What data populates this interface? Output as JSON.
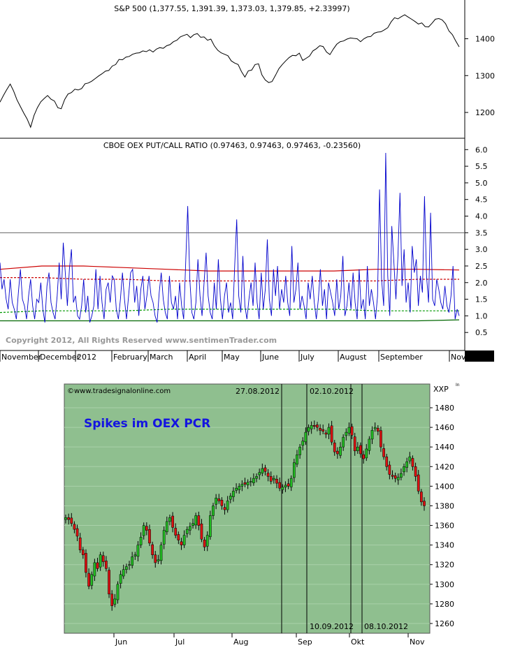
{
  "chart_data": [
    {
      "type": "line",
      "title": "S&P 500 (1,377.55, 1,391.39, 1,373.03, 1,379.85, +2.33997)",
      "y_ticks": [
        "1400",
        "1300",
        "1200"
      ],
      "ylim": [
        1130,
        1490
      ],
      "series": [
        {
          "values": [
            1228,
            1246,
            1262,
            1277,
            1258,
            1234,
            1216,
            1198,
            1182,
            1160,
            1192,
            1213,
            1229,
            1238,
            1246,
            1236,
            1231,
            1213,
            1210,
            1235,
            1250,
            1254,
            1263,
            1261,
            1265,
            1278,
            1280,
            1285,
            1292,
            1299,
            1305,
            1312,
            1314,
            1326,
            1330,
            1344,
            1343,
            1350,
            1352,
            1358,
            1361,
            1362,
            1367,
            1365,
            1370,
            1364,
            1372,
            1376,
            1374,
            1381,
            1384,
            1392,
            1396,
            1405,
            1409,
            1412,
            1403,
            1411,
            1414,
            1404,
            1405,
            1396,
            1399,
            1381,
            1369,
            1362,
            1358,
            1354,
            1340,
            1334,
            1330,
            1311,
            1296,
            1313,
            1315,
            1330,
            1332,
            1302,
            1288,
            1281,
            1284,
            1301,
            1319,
            1330,
            1340,
            1349,
            1355,
            1354,
            1361,
            1341,
            1347,
            1353,
            1367,
            1373,
            1381,
            1379,
            1364,
            1357,
            1372,
            1385,
            1392,
            1394,
            1399,
            1402,
            1401,
            1400,
            1392,
            1400,
            1405,
            1406,
            1415,
            1418,
            1419,
            1424,
            1430,
            1446,
            1457,
            1454,
            1460,
            1465,
            1459,
            1453,
            1447,
            1440,
            1443,
            1433,
            1432,
            1442,
            1453,
            1455,
            1451,
            1441,
            1421,
            1411,
            1394,
            1378
          ],
          "color": "#000000"
        }
      ]
    },
    {
      "type": "line",
      "title": "CBOE OEX PUT/CALL RATIO (0.97463, 0.97463, 0.97463, -0.23560)",
      "y_ticks": [
        "6.0",
        "5.5",
        "5.0",
        "4.5",
        "4.0",
        "3.5",
        "3.0",
        "2.5",
        "2.0",
        "1.5",
        "1.0",
        "0.5"
      ],
      "ylim": [
        0,
        6.3
      ],
      "x_ticks": [
        "November",
        "December",
        "2012",
        "February",
        "March",
        "April",
        "May",
        "June",
        "July",
        "August",
        "September",
        "Nov"
      ],
      "reference_line": 3.5,
      "series": [
        {
          "name": "",
          "color": "#0000cc",
          "values": [
            2.6,
            1.8,
            2.1,
            1.5,
            1.2,
            2.1,
            1.4,
            1.2,
            0.9,
            1.7,
            2.4,
            1.5,
            1.3,
            0.9,
            1.6,
            2.1,
            1.3,
            0.9,
            1.5,
            1.4,
            2.0,
            1.2,
            0.8,
            1.9,
            2.3,
            1.4,
            1.1,
            0.9,
            1.6,
            2.6,
            1.5,
            3.2,
            2.3,
            1.3,
            2.4,
            3.0,
            1.4,
            1.6,
            1.0,
            0.9,
            1.3,
            2.1,
            1.1,
            1.6,
            0.8,
            1.0,
            1.3,
            2.4,
            1.2,
            2.2,
            1.4,
            0.9,
            1.8,
            2.0,
            1.4,
            2.2,
            2.1,
            1.2,
            0.9,
            1.5,
            2.3,
            1.5,
            0.9,
            1.6,
            2.3,
            2.4,
            1.4,
            1.9,
            1.0,
            1.8,
            2.2,
            1.2,
            1.6,
            2.2,
            1.6,
            1.4,
            1.0,
            0.8,
            1.7,
            2.3,
            1.5,
            1.1,
            0.9,
            2.2,
            1.4,
            1.2,
            1.6,
            0.9,
            2.0,
            1.3,
            0.9,
            2.6,
            4.3,
            2.1,
            1.1,
            0.9,
            1.4,
            2.7,
            1.6,
            1.0,
            2.0,
            2.9,
            1.6,
            1.1,
            0.9,
            2.0,
            1.2,
            2.7,
            1.5,
            0.9,
            1.6,
            2.0,
            1.1,
            1.4,
            0.9,
            2.5,
            3.9,
            1.6,
            1.1,
            2.8,
            1.3,
            0.9,
            1.5,
            2.0,
            1.3,
            2.6,
            1.4,
            0.9,
            2.3,
            1.2,
            1.8,
            3.3,
            1.5,
            1.0,
            2.4,
            1.6,
            2.5,
            1.2,
            1.8,
            1.4,
            2.2,
            1.4,
            1.0,
            3.1,
            1.4,
            1.8,
            2.6,
            1.2,
            1.6,
            1.3,
            0.9,
            2.0,
            1.5,
            2.2,
            1.4,
            0.9,
            1.5,
            2.4,
            1.3,
            1.8,
            0.9,
            2.0,
            1.7,
            1.4,
            1.0,
            2.1,
            1.2,
            1.6,
            2.8,
            1.0,
            1.3,
            2.0,
            1.2,
            2.3,
            1.4,
            0.9,
            2.4,
            1.2,
            1.5,
            0.9,
            2.5,
            1.3,
            1.8,
            1.4,
            0.9,
            1.6,
            4.8,
            2.1,
            1.3,
            5.9,
            2.2,
            1.0,
            3.7,
            2.6,
            1.5,
            2.8,
            4.7,
            1.9,
            3.0,
            1.4,
            2.0,
            1.1,
            3.1,
            2.3,
            2.7,
            1.3,
            2.2,
            1.7,
            4.6,
            2.2,
            1.4,
            4.1,
            1.5,
            1.3,
            2.1,
            1.8,
            1.4,
            1.2,
            1.9,
            1.3,
            1.1,
            1.6,
            2.5,
            0.9,
            1.2,
            1.0
          ]
        },
        {
          "name": "",
          "color": "#cc0000",
          "values": [
            2.4,
            2.5,
            2.5,
            2.45,
            2.4,
            2.35,
            2.35,
            2.35,
            2.35,
            2.4,
            2.4,
            2.38
          ]
        },
        {
          "name": "",
          "color": "#cc0000",
          "dashed": true,
          "values": [
            2.15,
            2.15,
            2.1,
            2.1,
            2.05,
            2.05,
            2.05,
            2.05,
            2.05,
            2.05,
            2.1,
            2.1
          ]
        },
        {
          "name": "",
          "color": "#009900",
          "dashed": true,
          "values": [
            1.1,
            1.15,
            1.15,
            1.15,
            1.2,
            1.2,
            1.2,
            1.2,
            1.2,
            1.15,
            1.15,
            1.15
          ]
        },
        {
          "name": "",
          "color": "#006600",
          "values": [
            0.85,
            0.85,
            0.85,
            0.85,
            0.85,
            0.85,
            0.85,
            0.85,
            0.85,
            0.85,
            0.85,
            0.88
          ]
        }
      ]
    },
    {
      "type": "candlestick",
      "title": "Spikes im OEX PCR",
      "y_ticks": [
        "1480",
        "1460",
        "1440",
        "1420",
        "1400",
        "1380",
        "1360",
        "1340",
        "1320",
        "1300",
        "1280",
        "1260"
      ],
      "ylim": [
        1249,
        1501
      ],
      "x_ticks": [
        "Jun",
        "Jul",
        "Aug",
        "Sep",
        "Okt",
        "Nov"
      ],
      "axis_label": "XXP",
      "markers": [
        "27.08.2012",
        "02.10.2012",
        "10.09.2012",
        "08.10.2012"
      ],
      "close": [
        1368,
        1366,
        1362,
        1356,
        1349,
        1335,
        1330,
        1312,
        1298,
        1310,
        1322,
        1316,
        1330,
        1323,
        1316,
        1290,
        1278,
        1285,
        1300,
        1310,
        1315,
        1318,
        1320,
        1328,
        1330,
        1340,
        1348,
        1360,
        1355,
        1342,
        1330,
        1322,
        1325,
        1340,
        1355,
        1364,
        1368,
        1358,
        1350,
        1345,
        1340,
        1350,
        1356,
        1359,
        1362,
        1370,
        1360,
        1346,
        1338,
        1350,
        1370,
        1380,
        1388,
        1385,
        1380,
        1376,
        1385,
        1390,
        1395,
        1398,
        1400,
        1402,
        1402,
        1404,
        1405,
        1408,
        1410,
        1414,
        1418,
        1415,
        1410,
        1405,
        1408,
        1403,
        1398,
        1399,
        1401,
        1400,
        1408,
        1424,
        1432,
        1440,
        1446,
        1455,
        1460,
        1462,
        1461,
        1460,
        1457,
        1456,
        1453,
        1460,
        1445,
        1435,
        1433,
        1440,
        1450,
        1455,
        1460,
        1452,
        1436,
        1440,
        1433,
        1428,
        1438,
        1448,
        1457,
        1460,
        1456,
        1440,
        1430,
        1420,
        1412,
        1410,
        1408,
        1409,
        1413,
        1420,
        1425,
        1430,
        1420,
        1410,
        1395,
        1384,
        1380
      ]
    }
  ],
  "top_panel": {
    "copyright": "Copyright 2012, All Rights Reserved  www.sentimenTrader.com"
  },
  "bottom_panel": {
    "source": "www.tradesignalonline.com",
    "corner_mark": "In"
  }
}
